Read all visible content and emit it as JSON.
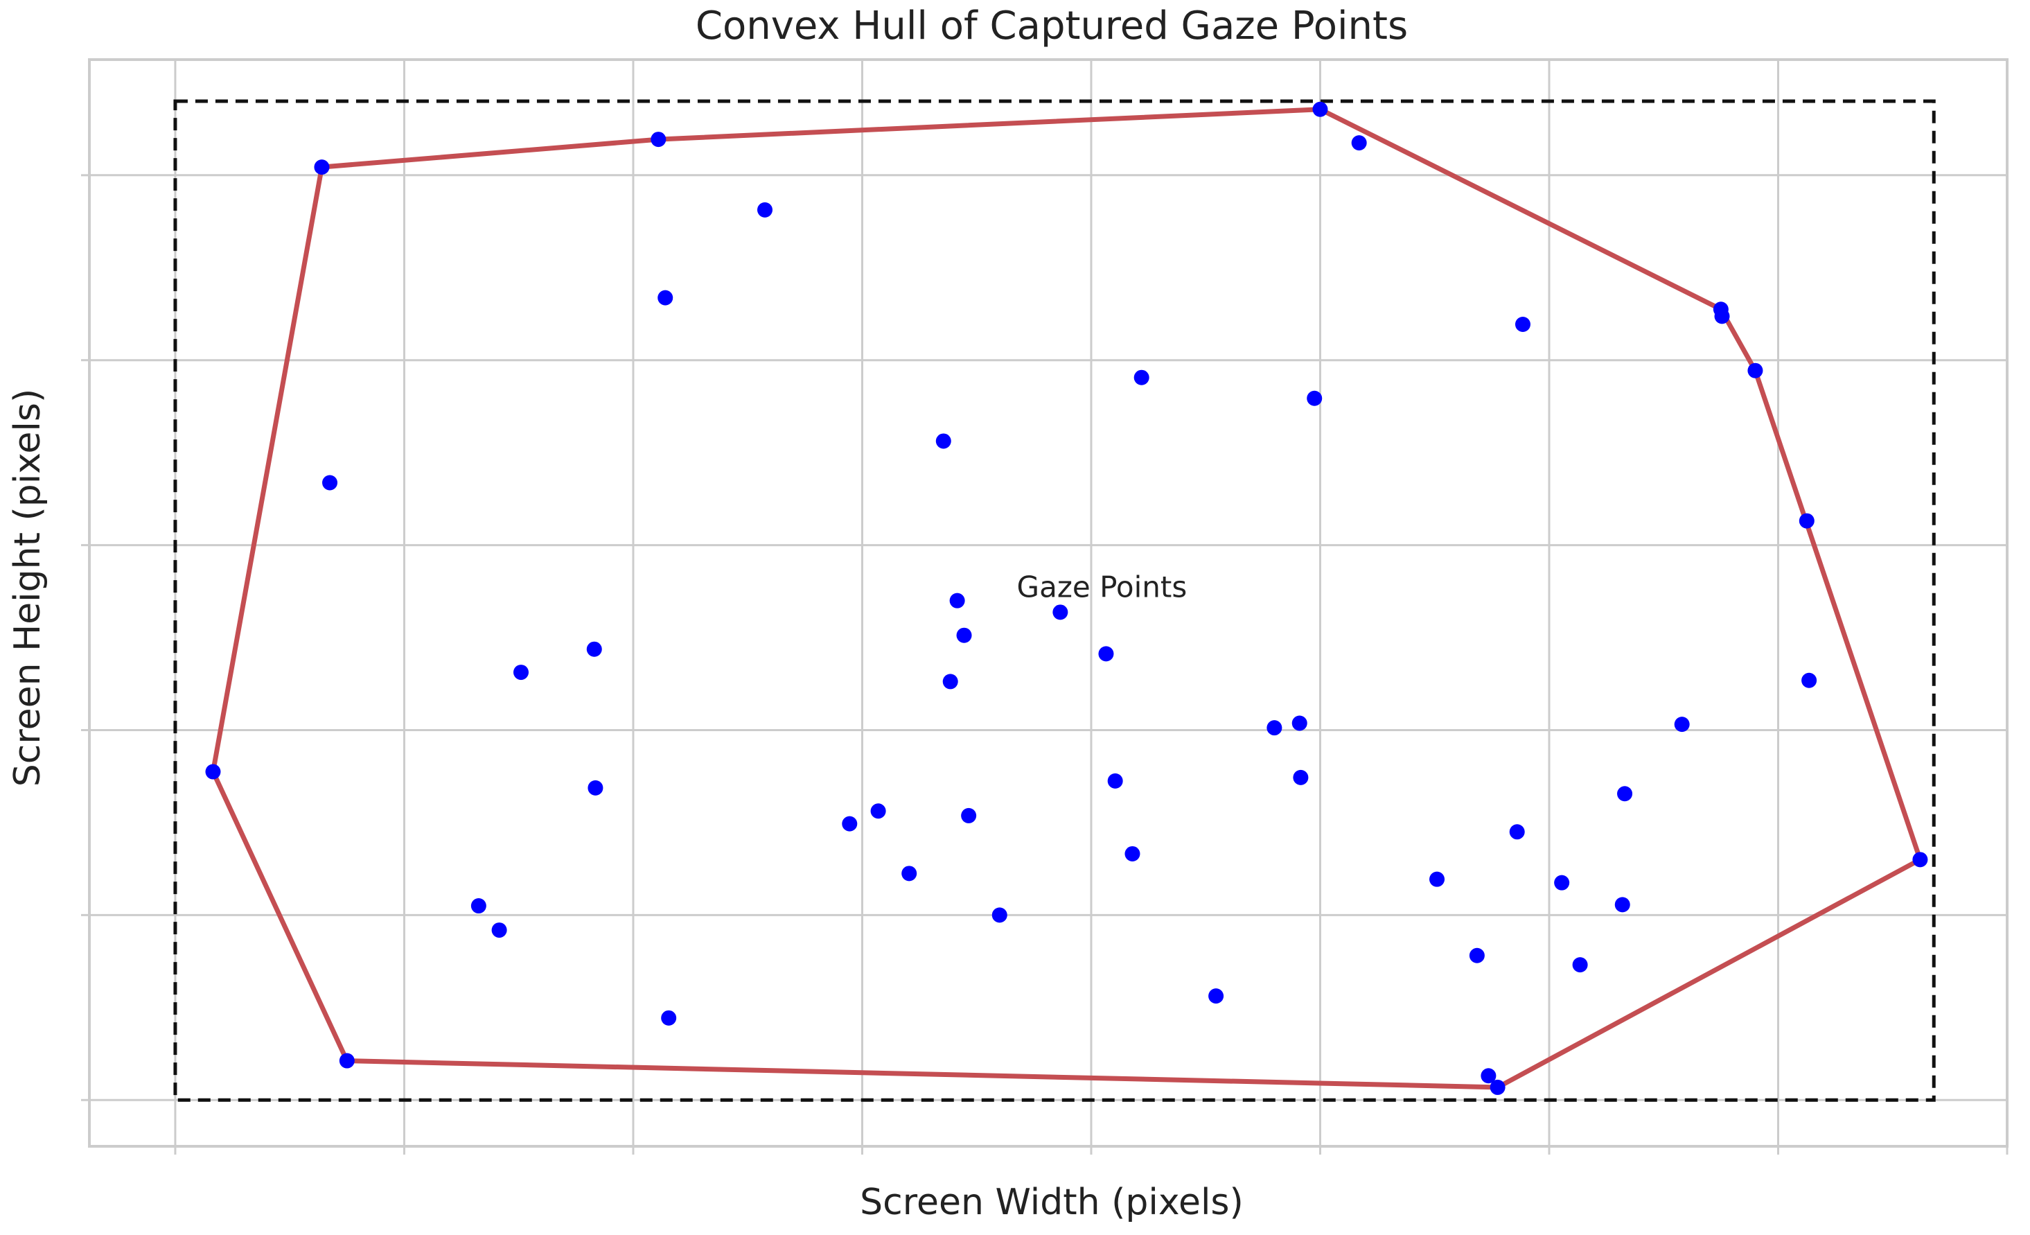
{
  "chart_data": {
    "type": "scatter",
    "title": "Convex Hull of Captured Gaze Points",
    "xlabel": "Screen Width (pixels)",
    "ylabel": "Screen Height (pixels)",
    "xlim": [
      -75,
      1600
    ],
    "ylim": [
      -40,
      900
    ],
    "xgrid": [
      0,
      200,
      400,
      600,
      800,
      1000,
      1200,
      1400,
      1600
    ],
    "ygrid": [
      0,
      160,
      320,
      480,
      640,
      800
    ],
    "grid": true,
    "annotations": [
      {
        "text": "Gaze Points",
        "x": 735,
        "y": 435
      }
    ],
    "screen_boundary": {
      "x": [
        0,
        1536
      ],
      "y": [
        0,
        864
      ],
      "style": "dashed",
      "color": "#111111"
    },
    "series": [
      {
        "kind": "points",
        "color": "#0000ff",
        "points": [
          [
            33,
            284
          ],
          [
            150,
            34
          ],
          [
            135,
            534
          ],
          [
            128,
            807
          ],
          [
            265,
            168
          ],
          [
            283,
            147
          ],
          [
            302,
            370
          ],
          [
            366,
            390
          ],
          [
            367,
            270
          ],
          [
            422,
            831
          ],
          [
            428,
            694
          ],
          [
            431,
            71
          ],
          [
            515,
            770
          ],
          [
            589,
            239
          ],
          [
            614,
            250
          ],
          [
            641,
            196
          ],
          [
            671,
            570
          ],
          [
            677,
            362
          ],
          [
            683,
            432
          ],
          [
            689,
            402
          ],
          [
            693,
            246
          ],
          [
            720,
            160
          ],
          [
            773,
            422
          ],
          [
            813,
            386
          ],
          [
            821,
            276
          ],
          [
            836,
            213
          ],
          [
            844,
            625
          ],
          [
            909,
            90
          ],
          [
            960,
            322
          ],
          [
            982,
            326
          ],
          [
            983,
            279
          ],
          [
            995,
            607
          ],
          [
            1000,
            857
          ],
          [
            1034,
            828
          ],
          [
            1102,
            191
          ],
          [
            1137,
            125
          ],
          [
            1147,
            21
          ],
          [
            1155,
            11
          ],
          [
            1172,
            232
          ],
          [
            1177,
            671
          ],
          [
            1211,
            188
          ],
          [
            1227,
            117
          ],
          [
            1264,
            169
          ],
          [
            1266,
            265
          ],
          [
            1316,
            325
          ],
          [
            1350,
            684
          ],
          [
            1351,
            678
          ],
          [
            1380,
            631
          ],
          [
            1425,
            501
          ],
          [
            1427,
            363
          ],
          [
            1524,
            208
          ]
        ]
      },
      {
        "kind": "hull",
        "color": "#c44e52",
        "points": [
          [
            33,
            284
          ],
          [
            128,
            807
          ],
          [
            422,
            831
          ],
          [
            1000,
            857
          ],
          [
            1350,
            684
          ],
          [
            1380,
            631
          ],
          [
            1524,
            208
          ],
          [
            1155,
            11
          ],
          [
            150,
            34
          ]
        ]
      }
    ]
  }
}
